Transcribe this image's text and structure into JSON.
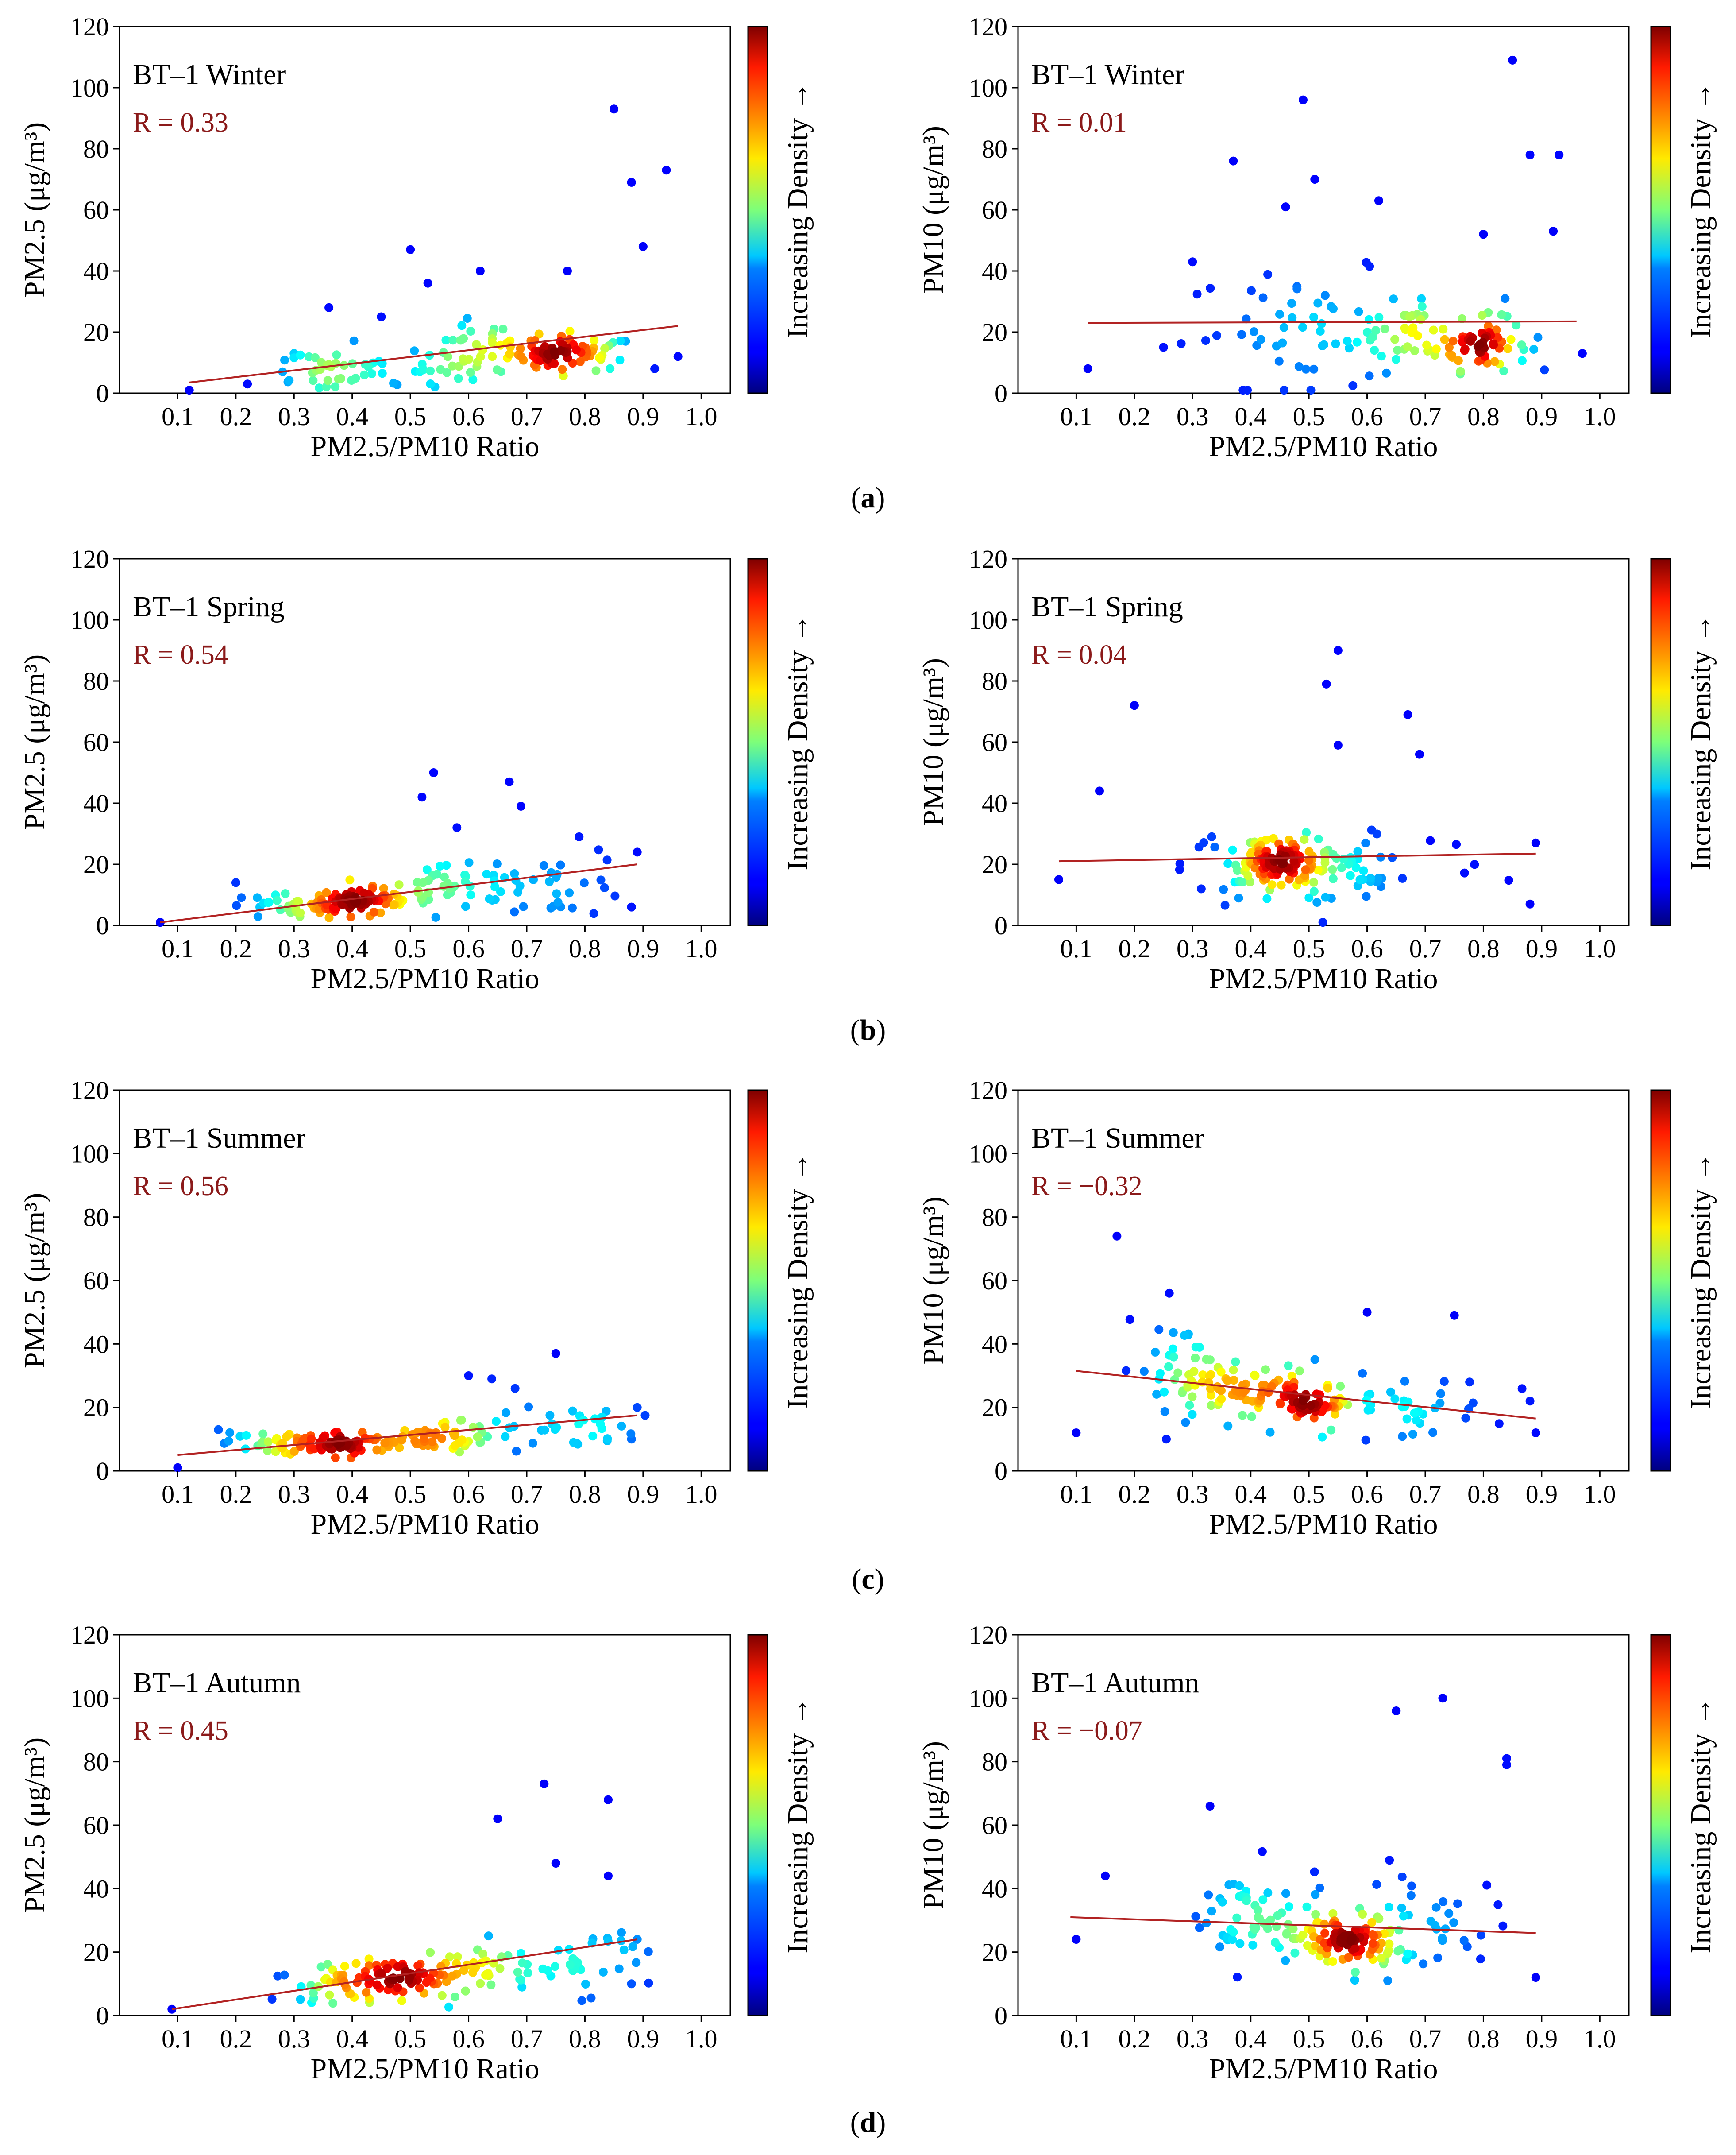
{
  "figure": {
    "colorbar_label": "Increasing Density →",
    "panel_labels": [
      "(a)",
      "(b)",
      "(c)",
      "(d)"
    ]
  },
  "chart_data": [
    {
      "type": "scatter",
      "panel": "a",
      "title": "BT–1 Winter",
      "r_text": "R = 0.33",
      "ylabel": "PM2.5 (μg/m³)",
      "xlabel": "PM2.5/PM10 Ratio",
      "xlim": [
        0.0,
        1.05
      ],
      "ylim": [
        0,
        120
      ],
      "xticks": [
        "0.1",
        "0.2",
        "0.3",
        "0.4",
        "0.5",
        "0.6",
        "0.7",
        "0.8",
        "0.9",
        "1.0"
      ],
      "yticks": [
        "0",
        "20",
        "40",
        "60",
        "80",
        "100",
        "120"
      ],
      "trend": [
        [
          0.12,
          3.5
        ],
        [
          0.96,
          22
        ]
      ],
      "clusters": [
        [
          0.78,
          13,
          0.1,
          4,
          55
        ],
        [
          0.65,
          14,
          0.15,
          6,
          40
        ],
        [
          0.5,
          8,
          0.15,
          6,
          35
        ],
        [
          0.35,
          8,
          0.12,
          5,
          25
        ]
      ],
      "outliers": [
        [
          0.85,
          93
        ],
        [
          0.94,
          73
        ],
        [
          0.88,
          69
        ],
        [
          0.9,
          48
        ],
        [
          0.5,
          47
        ],
        [
          0.62,
          40
        ],
        [
          0.77,
          40
        ],
        [
          0.53,
          36
        ],
        [
          0.36,
          28
        ],
        [
          0.45,
          25
        ],
        [
          0.12,
          1
        ],
        [
          0.96,
          12
        ],
        [
          0.92,
          8
        ],
        [
          0.22,
          3
        ],
        [
          0.3,
          13
        ]
      ]
    },
    {
      "type": "scatter",
      "panel": "a",
      "title": "BT–1 Winter",
      "r_text": "R = 0.01",
      "ylabel": "PM10 (μg/m³)",
      "xlabel": "PM2.5/PM10 Ratio",
      "xlim": [
        0.0,
        1.05
      ],
      "ylim": [
        0,
        120
      ],
      "xticks": [
        "0.1",
        "0.2",
        "0.3",
        "0.4",
        "0.5",
        "0.6",
        "0.7",
        "0.8",
        "0.9",
        "1.0"
      ],
      "yticks": [
        "0",
        "20",
        "40",
        "60",
        "80",
        "100",
        "120"
      ],
      "trend": [
        [
          0.12,
          23
        ],
        [
          0.96,
          23.5
        ]
      ],
      "clusters": [
        [
          0.8,
          16,
          0.07,
          6,
          55
        ],
        [
          0.68,
          20,
          0.14,
          9,
          45
        ],
        [
          0.5,
          20,
          0.2,
          14,
          50
        ]
      ],
      "outliers": [
        [
          0.85,
          109
        ],
        [
          0.49,
          96
        ],
        [
          0.37,
          76
        ],
        [
          0.88,
          78
        ],
        [
          0.93,
          78
        ],
        [
          0.51,
          70
        ],
        [
          0.46,
          61
        ],
        [
          0.62,
          63
        ],
        [
          0.92,
          53
        ],
        [
          0.8,
          52
        ],
        [
          0.3,
          43
        ],
        [
          0.12,
          8
        ],
        [
          0.97,
          13
        ],
        [
          0.25,
          15
        ]
      ]
    },
    {
      "type": "scatter",
      "panel": "b",
      "title": "BT–1 Spring",
      "r_text": "R = 0.54",
      "ylabel": "PM2.5 (μg/m³)",
      "xlabel": "PM2.5/PM10 Ratio",
      "xlim": [
        0.0,
        1.05
      ],
      "ylim": [
        0,
        120
      ],
      "xticks": [
        "0.1",
        "0.2",
        "0.3",
        "0.4",
        "0.5",
        "0.6",
        "0.7",
        "0.8",
        "0.9",
        "1.0"
      ],
      "yticks": [
        "0",
        "20",
        "40",
        "60",
        "80",
        "100",
        "120"
      ],
      "trend": [
        [
          0.07,
          1
        ],
        [
          0.89,
          20
        ]
      ],
      "clusters": [
        [
          0.42,
          8,
          0.1,
          3,
          70
        ],
        [
          0.3,
          6,
          0.12,
          3,
          40
        ],
        [
          0.58,
          12,
          0.12,
          5,
          40
        ],
        [
          0.75,
          14,
          0.12,
          8,
          30
        ]
      ],
      "outliers": [
        [
          0.54,
          50
        ],
        [
          0.67,
          47
        ],
        [
          0.69,
          39
        ],
        [
          0.52,
          42
        ],
        [
          0.58,
          32
        ],
        [
          0.79,
          29
        ],
        [
          0.07,
          1
        ],
        [
          0.89,
          24
        ],
        [
          0.88,
          6
        ],
        [
          0.2,
          14
        ]
      ]
    },
    {
      "type": "scatter",
      "panel": "b",
      "title": "BT–1 Spring",
      "r_text": "R = 0.04",
      "ylabel": "PM10 (μg/m³)",
      "xlabel": "PM2.5/PM10 Ratio",
      "xlim": [
        0.0,
        1.05
      ],
      "ylim": [
        0,
        120
      ],
      "xticks": [
        "0.1",
        "0.2",
        "0.3",
        "0.4",
        "0.5",
        "0.6",
        "0.7",
        "0.8",
        "0.9",
        "1.0"
      ],
      "yticks": [
        "0",
        "20",
        "40",
        "60",
        "80",
        "100",
        "120"
      ],
      "trend": [
        [
          0.07,
          21
        ],
        [
          0.89,
          23.5
        ]
      ],
      "clusters": [
        [
          0.45,
          20,
          0.07,
          4,
          60
        ],
        [
          0.45,
          20,
          0.15,
          7,
          70
        ],
        [
          0.55,
          20,
          0.25,
          12,
          50
        ]
      ],
      "outliers": [
        [
          0.55,
          90
        ],
        [
          0.53,
          79
        ],
        [
          0.67,
          69
        ],
        [
          0.2,
          72
        ],
        [
          0.69,
          56
        ],
        [
          0.55,
          59
        ],
        [
          0.07,
          15
        ],
        [
          0.89,
          27
        ],
        [
          0.14,
          44
        ],
        [
          0.88,
          7
        ]
      ]
    },
    {
      "type": "scatter",
      "panel": "c",
      "title": "BT–1 Summer",
      "r_text": "R = 0.56",
      "ylabel": "PM2.5 (μg/m³)",
      "xlabel": "PM2.5/PM10 Ratio",
      "xlim": [
        0.0,
        1.05
      ],
      "ylim": [
        0,
        120
      ],
      "xticks": [
        "0.1",
        "0.2",
        "0.3",
        "0.4",
        "0.5",
        "0.6",
        "0.7",
        "0.8",
        "0.9",
        "1.0"
      ],
      "yticks": [
        "0",
        "20",
        "40",
        "60",
        "80",
        "100",
        "120"
      ],
      "trend": [
        [
          0.1,
          5
        ],
        [
          0.89,
          17.5
        ]
      ],
      "clusters": [
        [
          0.38,
          9,
          0.12,
          2.5,
          60
        ],
        [
          0.52,
          10,
          0.1,
          3,
          40
        ],
        [
          0.3,
          8,
          0.12,
          3,
          30
        ],
        [
          0.72,
          14,
          0.15,
          5,
          40
        ]
      ],
      "outliers": [
        [
          0.75,
          37
        ],
        [
          0.6,
          30
        ],
        [
          0.64,
          29
        ],
        [
          0.68,
          26
        ],
        [
          0.1,
          1
        ],
        [
          0.89,
          20
        ],
        [
          0.17,
          13
        ],
        [
          0.88,
          10
        ]
      ]
    },
    {
      "type": "scatter",
      "panel": "c",
      "title": "BT–1 Summer",
      "r_text": "R = −0.32",
      "ylabel": "PM10 (μg/m³)",
      "xlabel": "PM2.5/PM10 Ratio",
      "xlim": [
        0.0,
        1.05
      ],
      "ylim": [
        0,
        120
      ],
      "xticks": [
        "0.1",
        "0.2",
        "0.3",
        "0.4",
        "0.5",
        "0.6",
        "0.7",
        "0.8",
        "0.9",
        "1.0"
      ],
      "yticks": [
        "0",
        "20",
        "40",
        "60",
        "80",
        "100",
        "120"
      ],
      "trend": [
        [
          0.1,
          31.5
        ],
        [
          0.89,
          16.5
        ]
      ],
      "clusters": [
        [
          0.5,
          21,
          0.07,
          4,
          50
        ],
        [
          0.4,
          25,
          0.12,
          7,
          60
        ],
        [
          0.65,
          20,
          0.15,
          7,
          40
        ],
        [
          0.28,
          32,
          0.1,
          10,
          40
        ]
      ],
      "outliers": [
        [
          0.17,
          74
        ],
        [
          0.26,
          56
        ],
        [
          0.6,
          50
        ],
        [
          0.75,
          49
        ],
        [
          0.1,
          12
        ],
        [
          0.89,
          12
        ],
        [
          0.88,
          22
        ]
      ]
    },
    {
      "type": "scatter",
      "panel": "d",
      "title": "BT–1 Autumn",
      "r_text": "R = 0.45",
      "ylabel": "PM2.5 (μg/m³)",
      "xlabel": "PM2.5/PM10 Ratio",
      "xlim": [
        0.0,
        1.05
      ],
      "ylim": [
        0,
        120
      ],
      "xticks": [
        "0.1",
        "0.2",
        "0.3",
        "0.4",
        "0.5",
        "0.6",
        "0.7",
        "0.8",
        "0.9",
        "1.0"
      ],
      "yticks": [
        "0",
        "20",
        "40",
        "60",
        "80",
        "100",
        "120"
      ],
      "trend": [
        [
          0.09,
          2
        ],
        [
          0.89,
          24
        ]
      ],
      "clusters": [
        [
          0.52,
          12,
          0.12,
          4,
          60
        ],
        [
          0.38,
          10,
          0.1,
          4,
          40
        ],
        [
          0.65,
          15,
          0.12,
          6,
          40
        ],
        [
          0.8,
          18,
          0.1,
          8,
          25
        ]
      ],
      "outliers": [
        [
          0.73,
          73
        ],
        [
          0.84,
          68
        ],
        [
          0.65,
          62
        ],
        [
          0.75,
          48
        ],
        [
          0.84,
          44
        ],
        [
          0.09,
          2
        ],
        [
          0.89,
          24
        ],
        [
          0.88,
          10
        ]
      ]
    },
    {
      "type": "scatter",
      "panel": "d",
      "title": "BT–1 Autumn",
      "r_text": "R = −0.07",
      "ylabel": "PM10 (μg/m³)",
      "xlabel": "PM2.5/PM10 Ratio",
      "xlim": [
        0.0,
        1.05
      ],
      "ylim": [
        0,
        120
      ],
      "xticks": [
        "0.1",
        "0.2",
        "0.3",
        "0.4",
        "0.5",
        "0.6",
        "0.7",
        "0.8",
        "0.9",
        "1.0"
      ],
      "yticks": [
        "0",
        "20",
        "40",
        "60",
        "80",
        "100",
        "120"
      ],
      "trend": [
        [
          0.09,
          31
        ],
        [
          0.89,
          26
        ]
      ],
      "clusters": [
        [
          0.58,
          22,
          0.06,
          5,
          50
        ],
        [
          0.55,
          25,
          0.14,
          8,
          60
        ],
        [
          0.4,
          30,
          0.12,
          12,
          50
        ],
        [
          0.72,
          28,
          0.1,
          12,
          30
        ]
      ],
      "outliers": [
        [
          0.73,
          100
        ],
        [
          0.65,
          96
        ],
        [
          0.84,
          81
        ],
        [
          0.84,
          79
        ],
        [
          0.33,
          66
        ],
        [
          0.1,
          24
        ],
        [
          0.89,
          12
        ],
        [
          0.15,
          44
        ]
      ]
    }
  ]
}
